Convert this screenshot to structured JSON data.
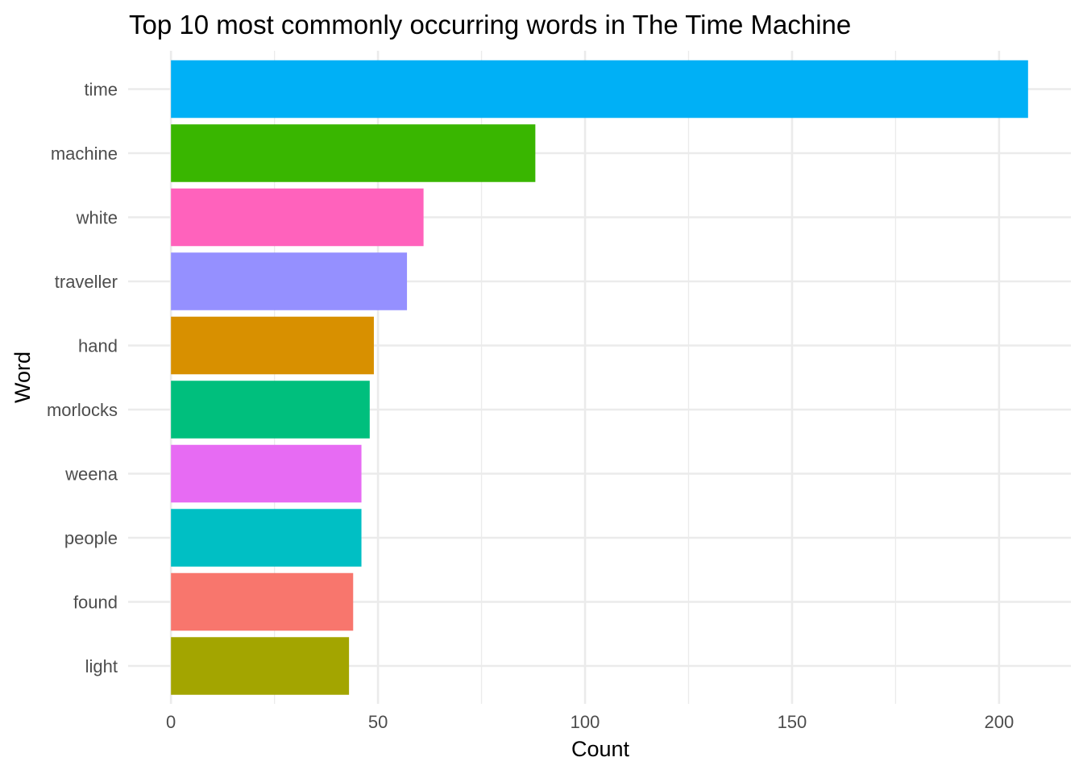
{
  "chart_data": {
    "type": "bar",
    "orientation": "horizontal",
    "title": "Top 10 most commonly occurring words in The Time Machine",
    "xlabel": "Count",
    "ylabel": "Word",
    "categories": [
      "time",
      "machine",
      "white",
      "traveller",
      "hand",
      "morlocks",
      "weena",
      "people",
      "found",
      "light"
    ],
    "values": [
      207,
      88,
      61,
      57,
      49,
      48,
      46,
      46,
      44,
      43
    ],
    "colors": [
      "#00B0F6",
      "#39B600",
      "#FF62BC",
      "#9590FF",
      "#D89000",
      "#00BF7D",
      "#E76BF3",
      "#00BFC4",
      "#F8766D",
      "#A3A500"
    ],
    "xlim": [
      -10.35,
      217.35
    ],
    "xticks": [
      0,
      50,
      100,
      150,
      200
    ],
    "xticks_minor": [
      25,
      75,
      125,
      175
    ],
    "grid": true,
    "legend": "none"
  }
}
